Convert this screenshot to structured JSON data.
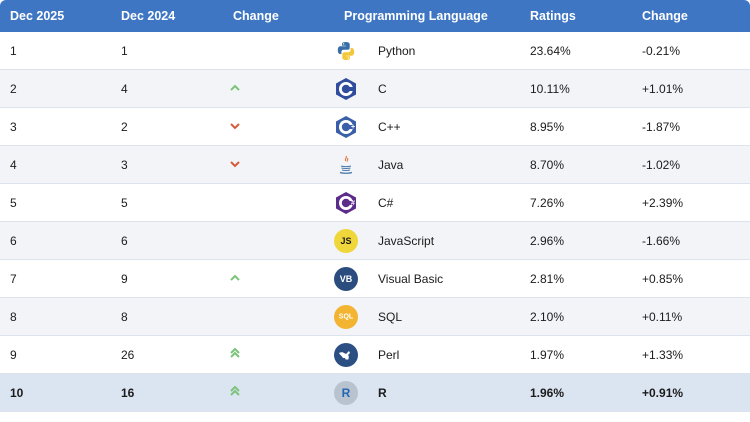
{
  "table": {
    "headers": [
      "Dec 2025",
      "Dec 2024",
      "Change",
      "Programming Language",
      "Ratings",
      "Change"
    ],
    "rows": [
      {
        "rank_2025": "1",
        "rank_2024": "1",
        "change_icon": "none",
        "language": "Python",
        "rating": "23.64%",
        "change": "-0.21%",
        "logo": "python-logo"
      },
      {
        "rank_2025": "2",
        "rank_2024": "4",
        "change_icon": "up",
        "language": "C",
        "rating": "10.11%",
        "change": "+1.01%",
        "logo": "c-logo"
      },
      {
        "rank_2025": "3",
        "rank_2024": "2",
        "change_icon": "down",
        "language": "C++",
        "rating": "8.95%",
        "change": "-1.87%",
        "logo": "cpp-logo"
      },
      {
        "rank_2025": "4",
        "rank_2024": "3",
        "change_icon": "down",
        "language": "Java",
        "rating": "8.70%",
        "change": "-1.02%",
        "logo": "java-logo"
      },
      {
        "rank_2025": "5",
        "rank_2024": "5",
        "change_icon": "none",
        "language": "C#",
        "rating": "7.26%",
        "change": "+2.39%",
        "logo": "csharp-logo"
      },
      {
        "rank_2025": "6",
        "rank_2024": "6",
        "change_icon": "none",
        "language": "JavaScript",
        "rating": "2.96%",
        "change": "-1.66%",
        "logo": "javascript-logo"
      },
      {
        "rank_2025": "7",
        "rank_2024": "9",
        "change_icon": "up",
        "language": "Visual Basic",
        "rating": "2.81%",
        "change": "+0.85%",
        "logo": "visual-basic-logo"
      },
      {
        "rank_2025": "8",
        "rank_2024": "8",
        "change_icon": "none",
        "language": "SQL",
        "rating": "2.10%",
        "change": "+0.11%",
        "logo": "sql-logo"
      },
      {
        "rank_2025": "9",
        "rank_2024": "26",
        "change_icon": "double-up",
        "language": "Perl",
        "rating": "1.97%",
        "change": "+1.33%",
        "logo": "perl-logo"
      },
      {
        "rank_2025": "10",
        "rank_2024": "16",
        "change_icon": "double-up",
        "language": "R",
        "rating": "1.96%",
        "change": "+0.91%",
        "logo": "r-logo",
        "highlighted": true
      }
    ]
  },
  "colors": {
    "header_bg": "#3e76c4",
    "up_arrow": "#7cc47a",
    "down_arrow": "#d9593b",
    "highlight_row": "#dbe4f1"
  },
  "logo_text": {
    "c-logo": "C",
    "cpp-logo": "C",
    "csharp-logo": "C",
    "javascript-logo": "JS",
    "visual-basic-logo": "VB",
    "sql-logo": "SQL",
    "r-logo": "R"
  }
}
